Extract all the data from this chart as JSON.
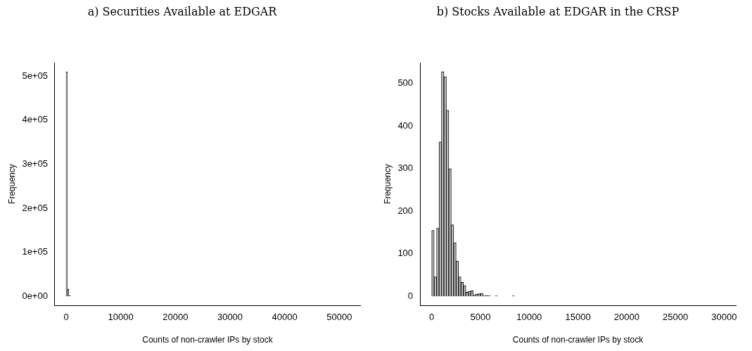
{
  "chart_data": [
    {
      "type": "histogram",
      "title": "a) Securities Available at EDGAR",
      "xlabel": "Counts of non-crawler IPs by stock",
      "ylabel": "Frequency",
      "color": "#c8c8c8",
      "grid": false,
      "legend": false,
      "bins": [
        0,
        250,
        500,
        750,
        1000,
        1250,
        1500,
        1750,
        2000,
        2250,
        2500,
        2750,
        3000,
        3250,
        3500,
        3750,
        4000,
        4250,
        4500,
        4750,
        5000,
        5250,
        5500,
        5750,
        6000,
        6250,
        6500,
        6750,
        7000,
        7250,
        7500,
        7750,
        8000,
        8250,
        8500,
        8750,
        9000,
        9250,
        9500,
        9750,
        10000,
        10250,
        10500,
        10750,
        11000,
        11250,
        11500,
        11750,
        12000,
        12250,
        12500,
        12750,
        13000,
        13250,
        13500,
        13750,
        14000,
        14250,
        14500,
        14750,
        15000,
        15250,
        15500,
        15750,
        16000,
        16250,
        16500,
        16750,
        17000,
        17250,
        17500,
        17750,
        18000,
        18250,
        18500,
        18750,
        19000,
        19250,
        19500,
        19750,
        20000,
        20250,
        20500,
        20750,
        21000,
        21250,
        21500,
        21750,
        22000,
        22250,
        22500,
        22750,
        23000,
        23250,
        23500,
        23750,
        24000,
        24250,
        24500,
        24750,
        25000,
        25250,
        25500,
        25750,
        26000,
        26250,
        26500,
        26750,
        27000,
        27250,
        27500,
        27750,
        28000,
        28250,
        28500,
        28750,
        29000,
        29250,
        29500,
        29750,
        30000,
        30250,
        30500,
        30750,
        31000,
        31250,
        31500,
        31750,
        32000,
        32250,
        32500,
        32750,
        33000,
        33250,
        33500,
        33750,
        34000,
        34250,
        34500,
        34750,
        35000,
        35250,
        35500,
        35750,
        36000,
        36250,
        36500,
        36750,
        37000,
        37250,
        37500,
        37750,
        38000,
        38250,
        38500,
        38750,
        39000,
        39250,
        39500,
        39750,
        40000,
        40250,
        40500,
        40750,
        41000,
        41250,
        41500,
        41750,
        42000,
        42250,
        42500,
        42750,
        43000,
        43250,
        43500,
        43750,
        44000,
        44250,
        44500,
        44750,
        45000,
        45250,
        45500,
        45750,
        46000,
        46250,
        46500,
        46750,
        47000,
        47250,
        47500,
        47750,
        48000,
        48250,
        48500,
        48750,
        49000,
        49250,
        49500,
        49750,
        50000,
        50250,
        50500,
        50750,
        51000,
        51250,
        51500,
        51750
      ],
      "values": [
        510000,
        16000,
        2000,
        0,
        0,
        0,
        0,
        0,
        0,
        0,
        0,
        0,
        0,
        0,
        0,
        0,
        0,
        0,
        0,
        0,
        0,
        0,
        0,
        0,
        0,
        0,
        0,
        0,
        0,
        0,
        0,
        0,
        0,
        0,
        0,
        0,
        0,
        0,
        0,
        0,
        0,
        0,
        0,
        0,
        0,
        0,
        0,
        0,
        0,
        0,
        0,
        0,
        0,
        0,
        0,
        0,
        0,
        0,
        0,
        0,
        0,
        0,
        0,
        0,
        0,
        0,
        0,
        0,
        0,
        0,
        0,
        0,
        0,
        0,
        0,
        0,
        0,
        0,
        0,
        0,
        0,
        0,
        0,
        0,
        0,
        0,
        0,
        0,
        0,
        0,
        0,
        0,
        0,
        0,
        0,
        0,
        0,
        0,
        0,
        0,
        0,
        0,
        0,
        0,
        0,
        0,
        0,
        0,
        0,
        0,
        0,
        0,
        0,
        0,
        0,
        0,
        0,
        0,
        0,
        0,
        0,
        0,
        0,
        0,
        0,
        0,
        0,
        0,
        0,
        0,
        0,
        0,
        0,
        0,
        0,
        0,
        0,
        0,
        0,
        0,
        0,
        0,
        0,
        0,
        0,
        0,
        0,
        0,
        0,
        0,
        0,
        0,
        0,
        0,
        0,
        0,
        0,
        0,
        0,
        0,
        0,
        0,
        0,
        0,
        0,
        0,
        0,
        0,
        0,
        0,
        0,
        0,
        0,
        0,
        0,
        0,
        0,
        0,
        0,
        0,
        0,
        0,
        0,
        0,
        0,
        0,
        0,
        0,
        0,
        0,
        0,
        0,
        0,
        0,
        0,
        0,
        0,
        0,
        0,
        0,
        0,
        0,
        0,
        0,
        0,
        0,
        0
      ],
      "xlim": [
        -2070,
        53820
      ],
      "xticks": [
        0,
        10000,
        20000,
        30000,
        40000,
        50000
      ],
      "ylim": [
        -20400,
        530400
      ],
      "yticks": [
        {
          "value": 0,
          "label": "0e+00"
        },
        {
          "value": 100000,
          "label": "1e+05"
        },
        {
          "value": 200000,
          "label": "2e+05"
        },
        {
          "value": 300000,
          "label": "3e+05"
        },
        {
          "value": 400000,
          "label": "4e+05"
        },
        {
          "value": 500000,
          "label": "5e+05"
        }
      ]
    },
    {
      "type": "histogram",
      "title": "b) Stocks Available at EDGAR in the CRSP",
      "xlabel": "Counts of non-crawler IPs by stock",
      "ylabel": "Frequency",
      "color": "#c8c8c8",
      "grid": false,
      "legend": false,
      "bins": [
        0,
        250,
        500,
        750,
        1000,
        1250,
        1500,
        1750,
        2000,
        2250,
        2500,
        2750,
        3000,
        3250,
        3500,
        3750,
        4000,
        4250,
        4500,
        4750,
        5000,
        5250,
        5500,
        5750,
        6000,
        6250,
        6500,
        6750,
        7000,
        7250,
        7500,
        7750,
        8000,
        8250,
        8500,
        8750,
        9000,
        9250,
        9500,
        9750,
        10000,
        10250,
        10500,
        10750,
        11000,
        11250,
        11500,
        11750,
        12000,
        12250,
        12500,
        12750,
        13000,
        13250,
        13500,
        13750,
        14000,
        14250,
        14500,
        14750,
        15000,
        15250,
        15500,
        15750,
        16000,
        16250,
        16500,
        16750,
        17000,
        17250,
        17500,
        17750,
        18000,
        18250,
        18500,
        18750,
        19000,
        19250,
        19500,
        19750,
        20000,
        20250,
        20500,
        20750,
        21000,
        21250,
        21500,
        21750,
        22000,
        22250,
        22500,
        22750,
        23000,
        23250,
        23500,
        23750,
        24000,
        24250,
        24500,
        24750,
        25000,
        25250,
        25500,
        25750,
        26000,
        26250,
        26500,
        26750,
        27000,
        27250,
        27500,
        27750,
        28000,
        28250,
        28500,
        28750,
        29000,
        29250,
        29500,
        29750,
        30000
      ],
      "values": [
        155,
        46,
        160,
        363,
        528,
        516,
        437,
        300,
        168,
        126,
        83,
        46,
        33,
        25,
        10,
        12,
        13,
        3,
        5,
        6,
        7,
        2,
        2,
        2,
        0,
        0,
        1,
        0,
        0,
        0,
        0,
        0,
        0,
        1,
        0,
        0,
        0,
        0,
        0,
        0,
        0,
        0,
        0,
        0,
        0,
        0,
        0,
        0,
        0,
        0,
        0,
        0,
        0,
        0,
        0,
        0,
        0,
        0,
        0,
        0,
        0,
        0,
        0,
        0,
        0,
        0,
        0,
        0,
        0,
        0,
        0,
        0,
        0,
        0,
        0,
        0,
        0,
        0,
        0,
        0,
        0,
        0,
        0,
        0,
        0,
        0,
        0,
        0,
        0,
        0,
        0,
        0,
        0,
        0,
        0,
        0,
        0,
        0,
        0,
        0,
        0,
        0,
        0,
        0,
        0,
        0,
        0,
        0,
        0,
        0,
        0,
        0,
        0,
        0,
        0,
        0,
        0,
        0,
        0,
        0
      ],
      "xlim": [
        -1200,
        31200
      ],
      "xticks": [
        0,
        5000,
        10000,
        15000,
        20000,
        25000,
        30000
      ],
      "ylim": [
        -21,
        549
      ],
      "yticks": [
        0,
        100,
        200,
        300,
        400,
        500
      ]
    }
  ]
}
